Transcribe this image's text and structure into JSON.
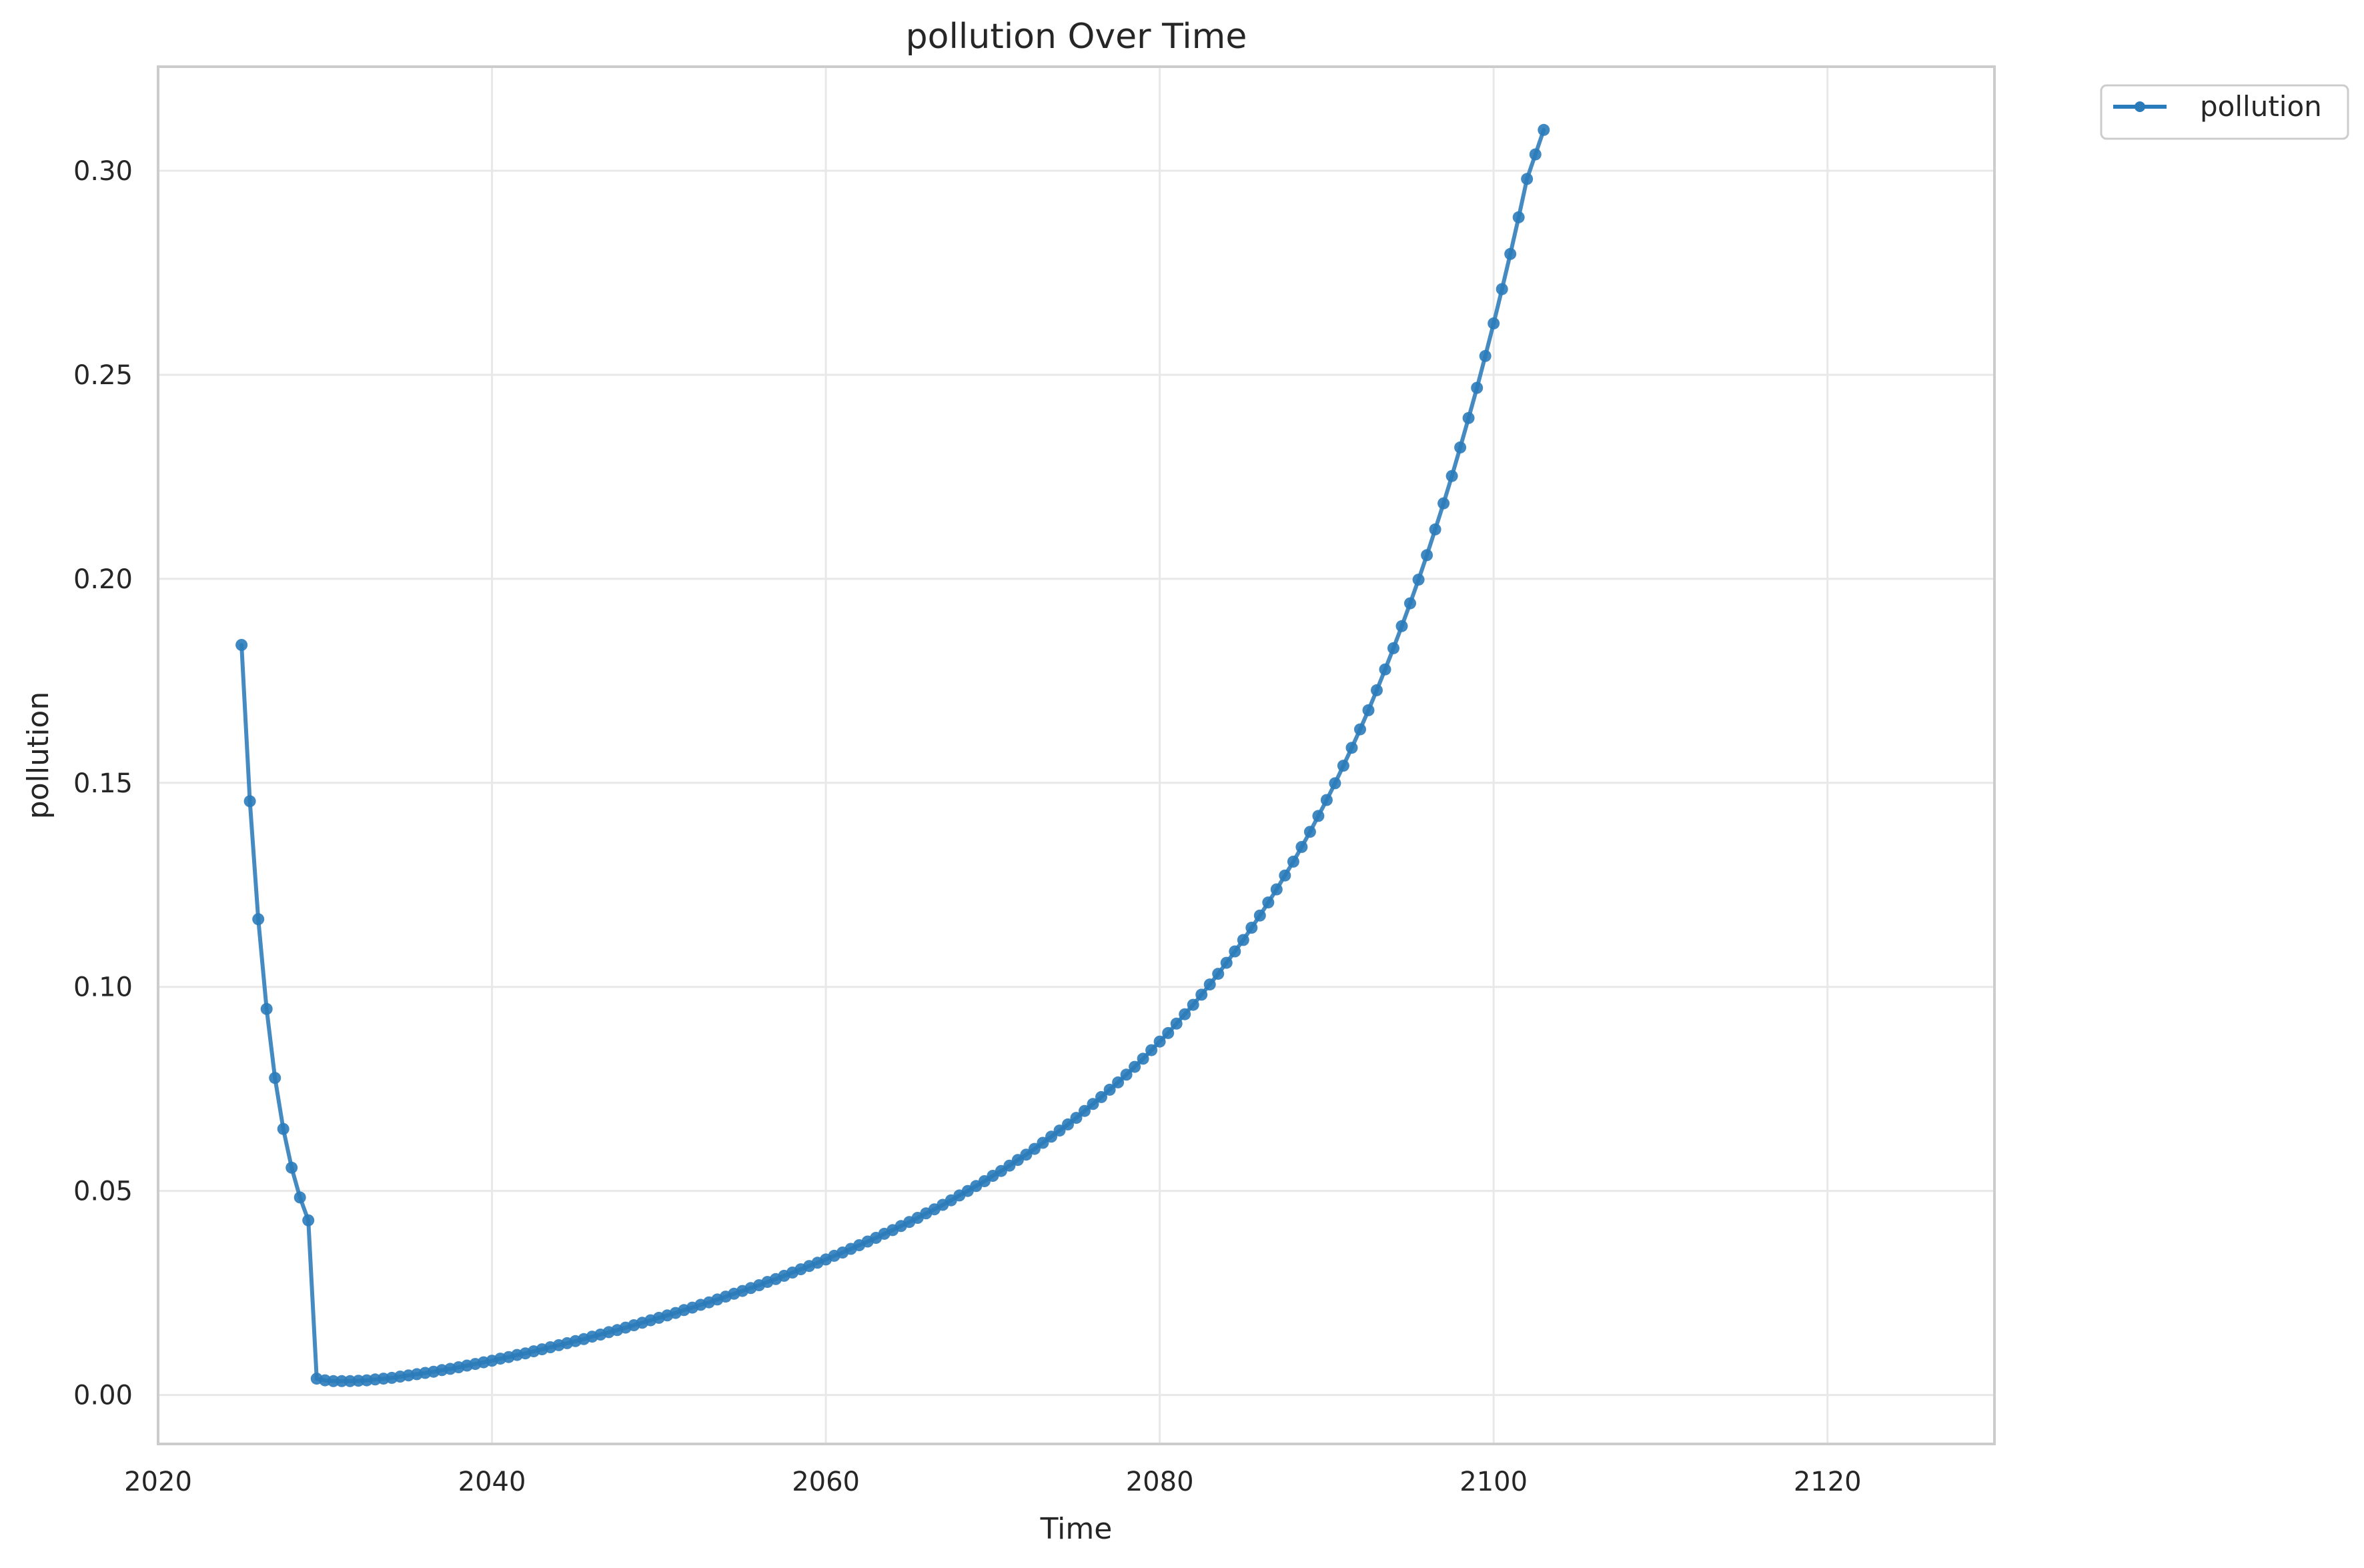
{
  "chart_data": {
    "type": "line",
    "title": "pollution Over Time",
    "xlabel": "Time",
    "ylabel": "pollution",
    "xlim": [
      2020,
      2130
    ],
    "ylim": [
      -0.012,
      0.3255
    ],
    "x_ticks": [
      2020,
      2040,
      2060,
      2080,
      2100,
      2120
    ],
    "x_tick_labels": [
      "2020",
      "2040",
      "2060",
      "2080",
      "2100",
      "2120"
    ],
    "y_ticks": [
      0.0,
      0.05,
      0.1,
      0.15,
      0.2,
      0.25,
      0.3
    ],
    "y_tick_labels": [
      "0.00",
      "0.05",
      "0.10",
      "0.15",
      "0.20",
      "0.25",
      "0.30"
    ],
    "grid": true,
    "legend_position": "outside-top-right",
    "series": [
      {
        "name": "pollution",
        "color": "#2b7bba",
        "marker": "circle",
        "x_start": 2025,
        "x_step": 0.5,
        "values": [
          0.1838,
          0.1455,
          0.1166,
          0.0946,
          0.0777,
          0.0652,
          0.0557,
          0.0484,
          0.0428,
          0.004,
          0.0036,
          0.0034,
          0.0034,
          0.0034,
          0.0035,
          0.0036,
          0.0038,
          0.004,
          0.0042,
          0.0045,
          0.0048,
          0.0051,
          0.0054,
          0.0057,
          0.0061,
          0.0064,
          0.0068,
          0.0072,
          0.0076,
          0.008,
          0.0084,
          0.0089,
          0.0093,
          0.0098,
          0.0102,
          0.0107,
          0.0112,
          0.0117,
          0.0122,
          0.0127,
          0.0132,
          0.0137,
          0.0143,
          0.0148,
          0.0154,
          0.0159,
          0.0165,
          0.0171,
          0.0177,
          0.0183,
          0.0189,
          0.0195,
          0.0201,
          0.0208,
          0.0214,
          0.0221,
          0.0227,
          0.0234,
          0.0241,
          0.0248,
          0.0255,
          0.0262,
          0.0269,
          0.0277,
          0.0284,
          0.0292,
          0.03,
          0.0308,
          0.0316,
          0.0324,
          0.0332,
          0.0341,
          0.0349,
          0.0358,
          0.0367,
          0.0376,
          0.0385,
          0.0395,
          0.0404,
          0.0414,
          0.0424,
          0.0434,
          0.0445,
          0.0455,
          0.0466,
          0.0477,
          0.0489,
          0.05,
          0.0512,
          0.0524,
          0.0537,
          0.0549,
          0.0562,
          0.0576,
          0.0589,
          0.0603,
          0.0618,
          0.0633,
          0.0648,
          0.0663,
          0.0679,
          0.0696,
          0.0713,
          0.073,
          0.0748,
          0.0766,
          0.0785,
          0.0804,
          0.0824,
          0.0845,
          0.0866,
          0.0887,
          0.091,
          0.0933,
          0.0956,
          0.0981,
          0.1006,
          0.1032,
          0.1059,
          0.1087,
          0.1115,
          0.1145,
          0.1175,
          0.1207,
          0.1239,
          0.1273,
          0.1307,
          0.1343,
          0.138,
          0.1419,
          0.1458,
          0.1499,
          0.1542,
          0.1586,
          0.1631,
          0.1678,
          0.1727,
          0.1778,
          0.183,
          0.1884,
          0.194,
          0.1998,
          0.2058,
          0.2121,
          0.2185,
          0.2252,
          0.2322,
          0.2394,
          0.2468,
          0.2546,
          0.2626,
          0.271,
          0.2796,
          0.2886,
          0.298,
          0.304,
          0.31
        ]
      }
    ]
  }
}
